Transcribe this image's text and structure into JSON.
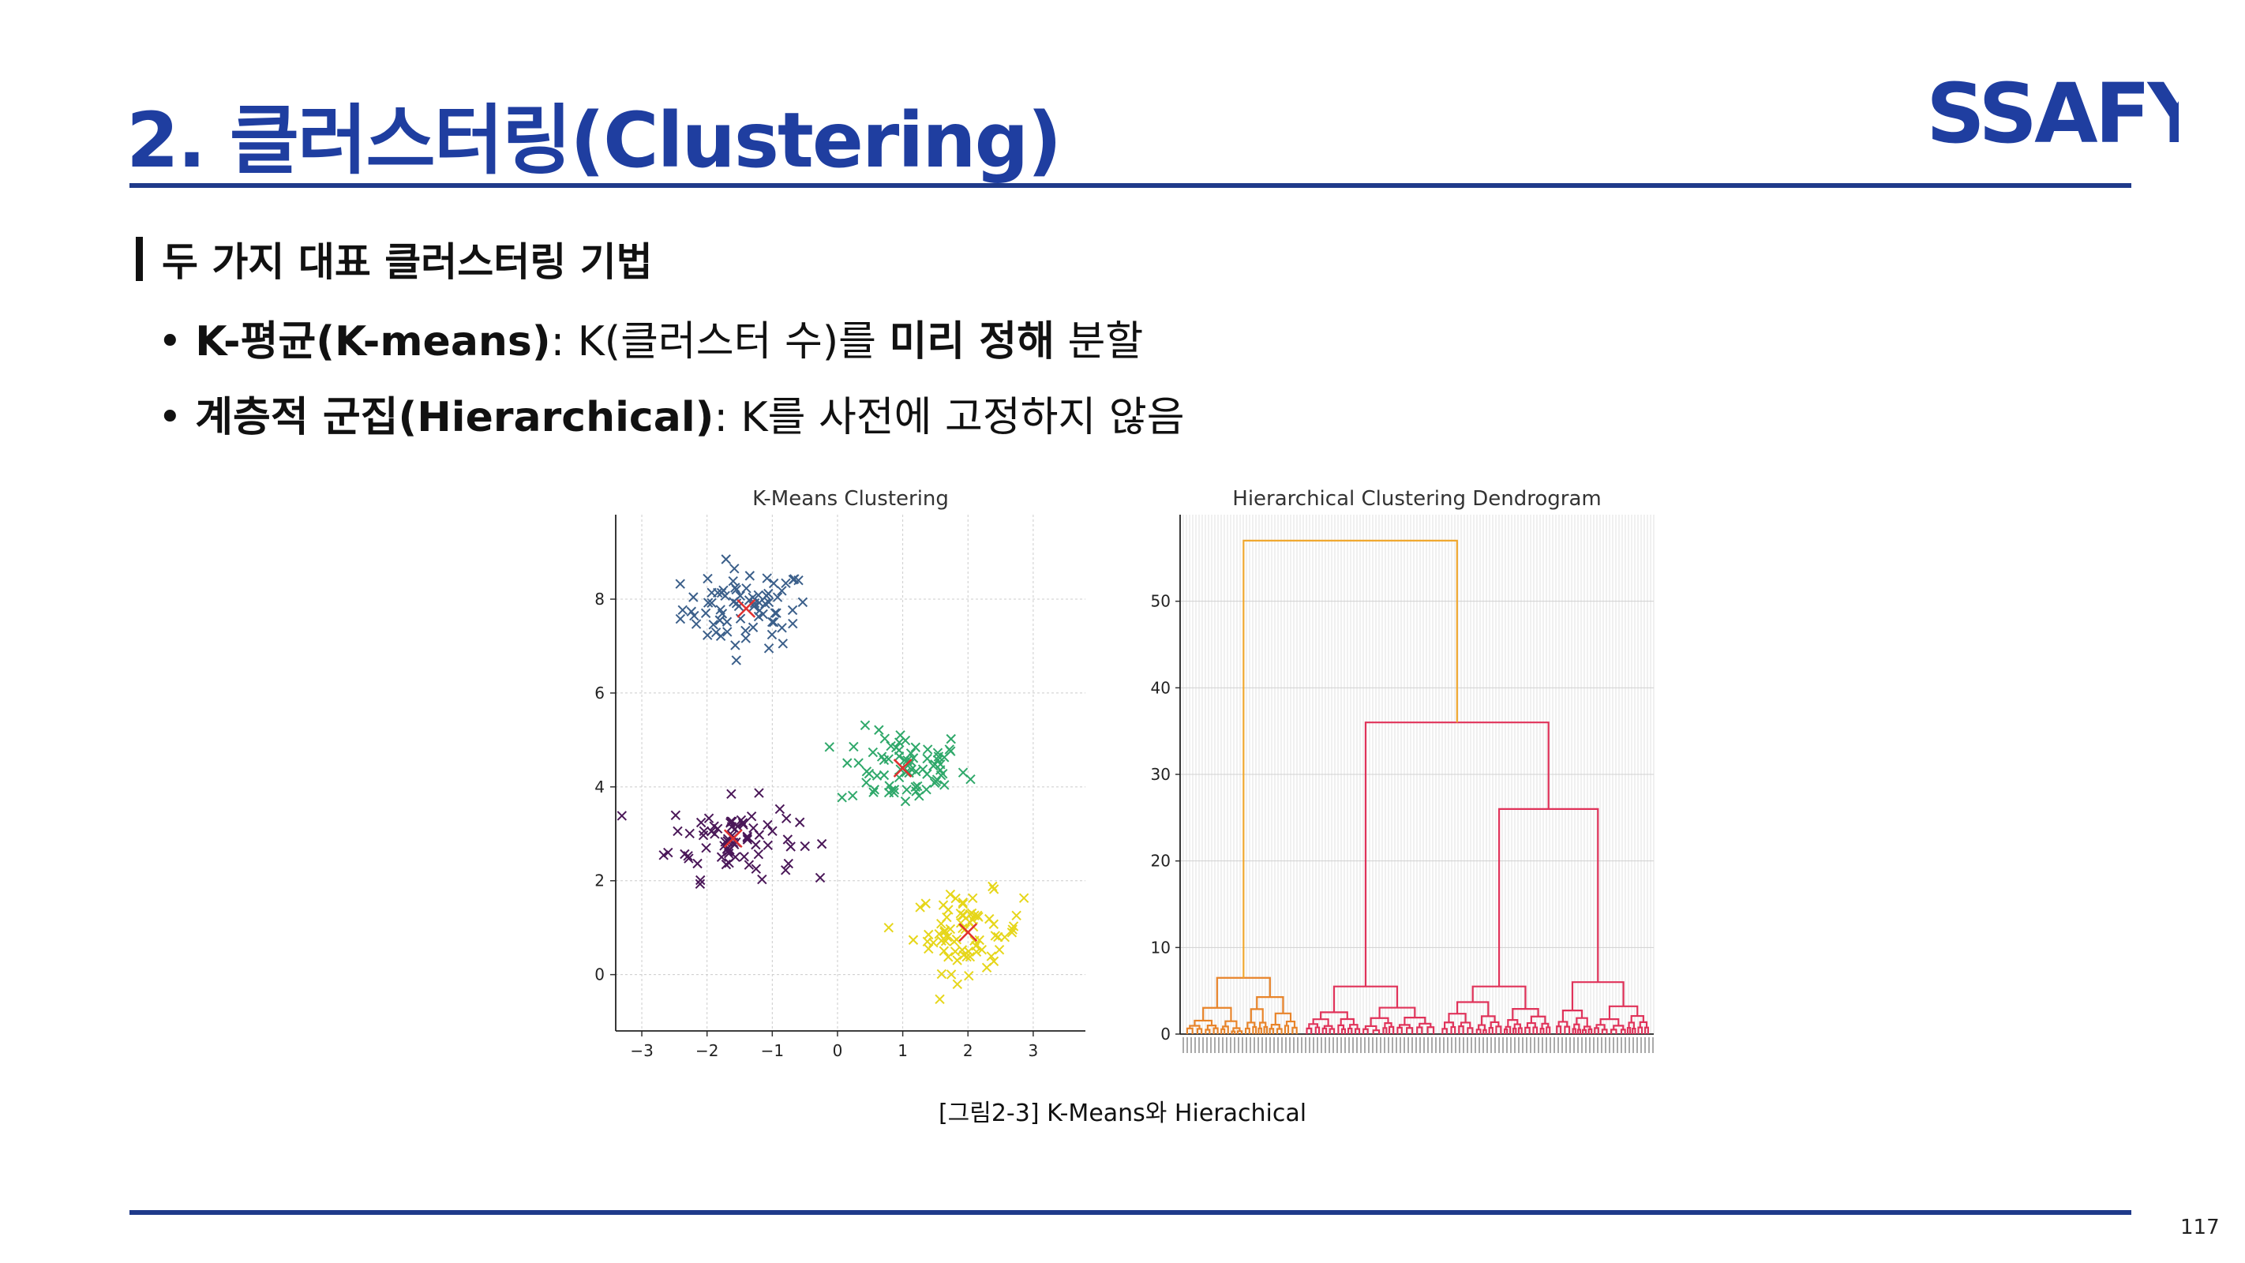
{
  "header": {
    "title": "2. 클러스터링(Clustering)",
    "logo_text": "SSAFY",
    "logo_colors": {
      "blue": "#1f3ea0",
      "light": "#6f8ee0"
    }
  },
  "section": {
    "heading": "두 가지 대표 클러스터링 기법"
  },
  "bullets": [
    {
      "bold": "K-평균(K-means)",
      "rest_1": ": K(클러스터 수)를 ",
      "bold_2": "미리 정해",
      "rest_2": " 분할"
    },
    {
      "bold": "계층적 군집(Hierarchical)",
      "rest_1": ": K를 사전에 고정하지 않음"
    }
  ],
  "figure": {
    "caption": "[그림2-3] K-Means와 Hierachical",
    "kmeans": {
      "type": "scatter",
      "title": "K-Means Clustering",
      "xlabel": "",
      "ylabel": "",
      "xlim": [
        -3.4,
        3.8
      ],
      "ylim": [
        -1.2,
        9.8
      ],
      "xticks": [
        "−3",
        "−2",
        "−1",
        "0",
        "1",
        "2",
        "3"
      ],
      "yticks": [
        "0",
        "2",
        "4",
        "6",
        "8"
      ],
      "grid": true,
      "marker": "x",
      "series": [
        {
          "color": "#3b5f8a",
          "center": [
            -1.4,
            7.8
          ],
          "spread": [
            0.7,
            0.6
          ],
          "count": 75
        },
        {
          "color": "#2fa86a",
          "center": [
            1.0,
            4.4
          ],
          "spread": [
            0.7,
            0.6
          ],
          "count": 75
        },
        {
          "color": "#4a1758",
          "center": [
            -1.6,
            2.9
          ],
          "spread": [
            0.7,
            0.6
          ],
          "count": 75
        },
        {
          "color": "#e6d61a",
          "center": [
            2.0,
            0.9
          ],
          "spread": [
            0.6,
            0.6
          ],
          "count": 75
        }
      ],
      "centroid_color": "#e03030"
    },
    "dendrogram": {
      "type": "dendrogram",
      "title": "Hierarchical Clustering Dendrogram",
      "xlabel": "",
      "ylabel": "",
      "ylim": [
        0,
        60
      ],
      "yticks": [
        "0",
        "10",
        "20",
        "30",
        "40",
        "50"
      ],
      "merges": {
        "root_height": 57,
        "orange_cluster_height": 6.5,
        "red_cluster_height": 36,
        "red_right_height": 26
      },
      "colors": {
        "orange": "#e8842a",
        "red": "#e0335a",
        "link": "#f0a830"
      }
    }
  },
  "page": {
    "number": "117"
  }
}
